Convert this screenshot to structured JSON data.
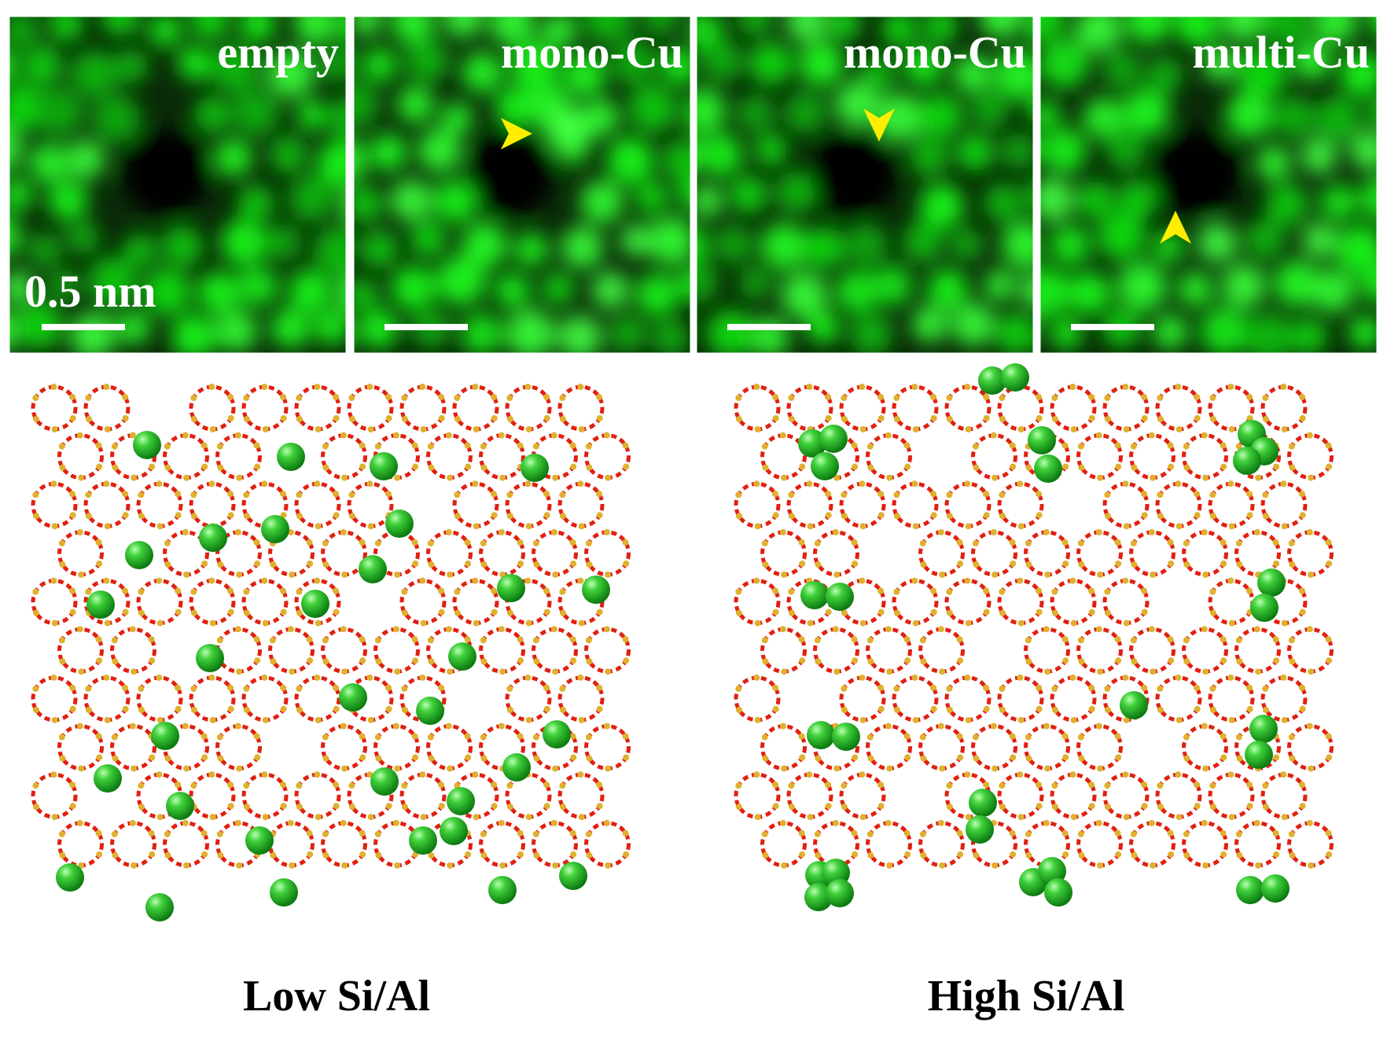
{
  "panels": [
    {
      "label": "empty",
      "scale_bar": "0.5 nm"
    },
    {
      "label": "mono-Cu"
    },
    {
      "label": "mono-Cu"
    },
    {
      "label": "multi-Cu"
    }
  ],
  "models": [
    {
      "caption": "Low Si/Al"
    },
    {
      "caption": "High Si/Al"
    }
  ]
}
